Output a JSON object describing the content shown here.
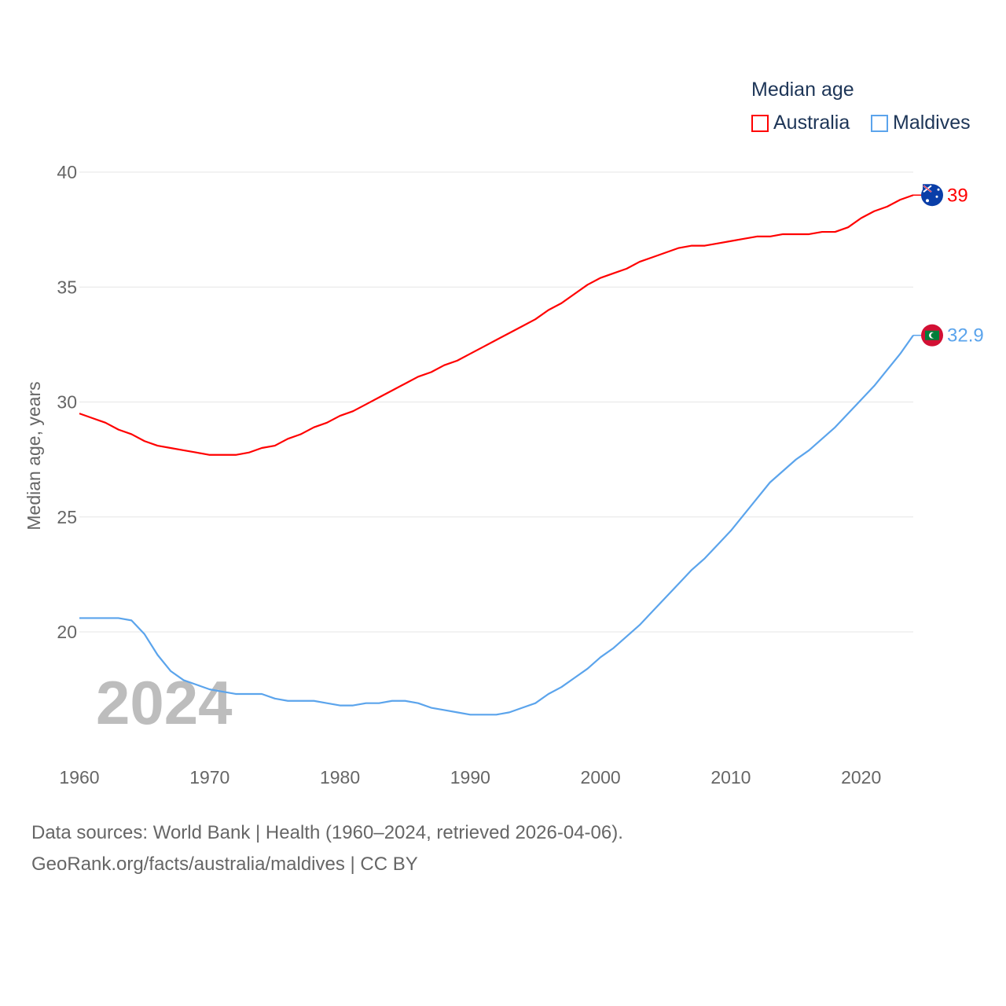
{
  "chart_data": {
    "type": "line",
    "title": "Median age",
    "ylabel": "Median age, years",
    "xlabel": "",
    "ylim": [
      15,
      40
    ],
    "xlim": [
      1960,
      2024
    ],
    "yticks": [
      20,
      25,
      30,
      35,
      40
    ],
    "xticks": [
      1960,
      1970,
      1980,
      1990,
      2000,
      2010,
      2020
    ],
    "grid": true,
    "legend_position": "top-right",
    "year_watermark": "2024",
    "x": [
      1960,
      1961,
      1962,
      1963,
      1964,
      1965,
      1966,
      1967,
      1968,
      1969,
      1970,
      1971,
      1972,
      1973,
      1974,
      1975,
      1976,
      1977,
      1978,
      1979,
      1980,
      1981,
      1982,
      1983,
      1984,
      1985,
      1986,
      1987,
      1988,
      1989,
      1990,
      1991,
      1992,
      1993,
      1994,
      1995,
      1996,
      1997,
      1998,
      1999,
      2000,
      2001,
      2002,
      2003,
      2004,
      2005,
      2006,
      2007,
      2008,
      2009,
      2010,
      2011,
      2012,
      2013,
      2014,
      2015,
      2016,
      2017,
      2018,
      2019,
      2020,
      2021,
      2022,
      2023,
      2024
    ],
    "series": [
      {
        "name": "Australia",
        "color": "#ff0000",
        "end_label": "39",
        "values": [
          29.5,
          29.3,
          29.1,
          28.8,
          28.6,
          28.3,
          28.1,
          28.0,
          27.9,
          27.8,
          27.7,
          27.7,
          27.7,
          27.8,
          28.0,
          28.1,
          28.4,
          28.6,
          28.9,
          29.1,
          29.4,
          29.6,
          29.9,
          30.2,
          30.5,
          30.8,
          31.1,
          31.3,
          31.6,
          31.8,
          32.1,
          32.4,
          32.7,
          33.0,
          33.3,
          33.6,
          34.0,
          34.3,
          34.7,
          35.1,
          35.4,
          35.6,
          35.8,
          36.1,
          36.3,
          36.5,
          36.7,
          36.8,
          36.8,
          36.9,
          37.0,
          37.1,
          37.2,
          37.2,
          37.3,
          37.3,
          37.3,
          37.4,
          37.4,
          37.6,
          38.0,
          38.3,
          38.5,
          38.8,
          39.0
        ]
      },
      {
        "name": "Maldives",
        "color": "#5ba4ec",
        "end_label": "32.9",
        "values": [
          20.6,
          20.6,
          20.6,
          20.6,
          20.5,
          19.9,
          19.0,
          18.3,
          17.9,
          17.7,
          17.5,
          17.4,
          17.3,
          17.3,
          17.3,
          17.1,
          17.0,
          17.0,
          17.0,
          16.9,
          16.8,
          16.8,
          16.9,
          16.9,
          17.0,
          17.0,
          16.9,
          16.7,
          16.6,
          16.5,
          16.4,
          16.4,
          16.4,
          16.5,
          16.7,
          16.9,
          17.3,
          17.6,
          18.0,
          18.4,
          18.9,
          19.3,
          19.8,
          20.3,
          20.9,
          21.5,
          22.1,
          22.7,
          23.2,
          23.8,
          24.4,
          25.1,
          25.8,
          26.5,
          27.0,
          27.5,
          27.9,
          28.4,
          28.9,
          29.5,
          30.1,
          30.7,
          31.4,
          32.1,
          32.9
        ]
      }
    ]
  },
  "source": {
    "line1": "Data sources: World Bank | Health (1960–2024, retrieved 2026-04-06).",
    "line2": "GeoRank.org/facts/australia/maldives | CC BY"
  }
}
